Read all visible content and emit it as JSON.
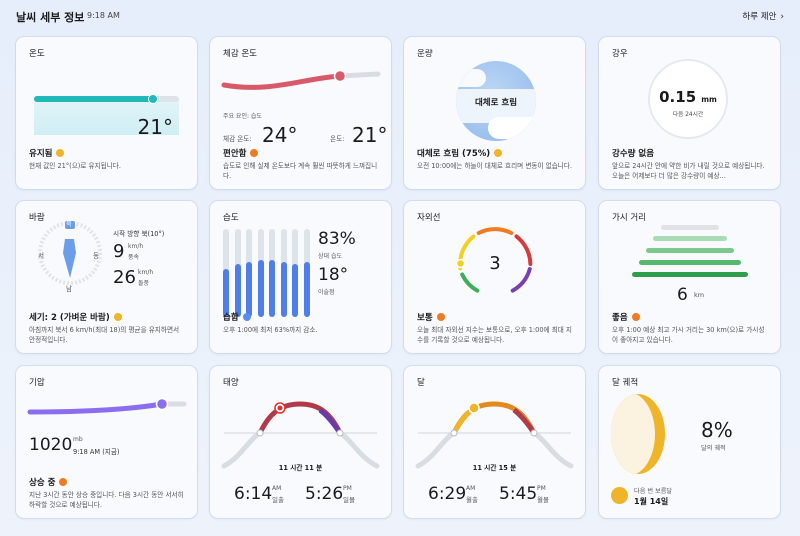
{
  "header": {
    "title": "날씨 세부 정보",
    "time": "9:18 AM",
    "link": "하루 제안"
  },
  "temperature": {
    "title": "온도",
    "value": "21°",
    "level": 0.82,
    "summary": "유지됨",
    "desc": "현재 값인 21°(으)로 유지됩니다."
  },
  "feels": {
    "title": "체감 온도",
    "main_factor": "주요 요인: 습도",
    "feels_label": "체감 온도:",
    "feels_value": "24°",
    "temp_label": "온도:",
    "temp_value": "21°",
    "summary": "편안함",
    "desc": "습도로 인해 실제 온도보다 계속 훨씬 따뜻하게 느껴집니다."
  },
  "cloud": {
    "title": "운량",
    "center_label": "대체로 흐림",
    "summary": "대체로 흐림 (75%)",
    "desc": "오전 10:00에는 하늘이 대체로 흐리며 변동이 없습니다."
  },
  "precip": {
    "title": "강우",
    "value": "0.15",
    "unit": "mm",
    "sub": "다음 24시간",
    "summary": "강수량 없음",
    "desc": "앞으로 24시간 안에 약한 비가 내릴 것으로 예상됩니다. 오늘은 어제보다 더 많은 강수량이 예상..."
  },
  "wind": {
    "title": "바람",
    "direction_label": "시작 방향 북(10°)",
    "compass": {
      "n": "북",
      "e": "동",
      "s": "남",
      "w": "서"
    },
    "speed_value": "9",
    "speed_unit": "km/h",
    "speed_label": "풍속",
    "gust_value": "26",
    "gust_unit": "km/h",
    "gust_label": "돌풍",
    "summary": "세기: 2 (가벼운 바람)",
    "desc": "아침까지 북서 6 km/h(최대 18)의 평균을 유지하면서 안정적입니다."
  },
  "humidity": {
    "title": "습도",
    "value": "83%",
    "label": "상대 습도",
    "dew_value": "18°",
    "dew_label": "이슬점",
    "bars": [
      0.55,
      0.6,
      0.62,
      0.65,
      0.65,
      0.62,
      0.6,
      0.62
    ],
    "summary": "습함",
    "desc": "오후 1:00에 최저 63%까지 감소."
  },
  "uv": {
    "title": "자외선",
    "value": "3",
    "summary": "보통",
    "desc": "오늘 최대 자외선 지수는 보통으로, 오후 1:00에 최대 지수를 기록할 것으로 예상됩니다."
  },
  "visibility": {
    "title": "가시 거리",
    "value": "6",
    "unit": "km",
    "summary": "좋음",
    "desc": "오후 1:00 예상 최고 가시 거리는 30 km(으)로 가시성이 좋아지고 있습니다."
  },
  "pressure": {
    "title": "기압",
    "value": "1020",
    "unit": "mb",
    "time": "9:18 AM (지금)",
    "level": 0.82,
    "summary": "상승 중",
    "desc": "지난 3시간 동안 상승 중입니다. 다음 3시간 동안 서서히 하락할 것으로 예상됩니다."
  },
  "sun": {
    "title": "태양",
    "duration": "11 시간 11 분",
    "rise_time": "6:14",
    "rise_ampm": "AM",
    "rise_label": "일출",
    "set_time": "5:26",
    "set_ampm": "PM",
    "set_label": "일몰"
  },
  "moon": {
    "title": "달",
    "duration": "11 시간 15 분",
    "rise_time": "6:29",
    "rise_ampm": "AM",
    "rise_label": "월출",
    "set_time": "5:45",
    "set_ampm": "PM",
    "set_label": "월몰"
  },
  "phase": {
    "title": "달 궤적",
    "value": "8%",
    "label": "달의 궤적",
    "next_label": "다음 번 보름달",
    "next_date": "1월 14일"
  },
  "colors": {
    "temp": "#20b8b8",
    "feels": "#d85a6a",
    "pressure": "#8b6ef0",
    "humidity": "#4f7ee8",
    "visibility": "#3fae5a",
    "moon": "#f0b429"
  }
}
